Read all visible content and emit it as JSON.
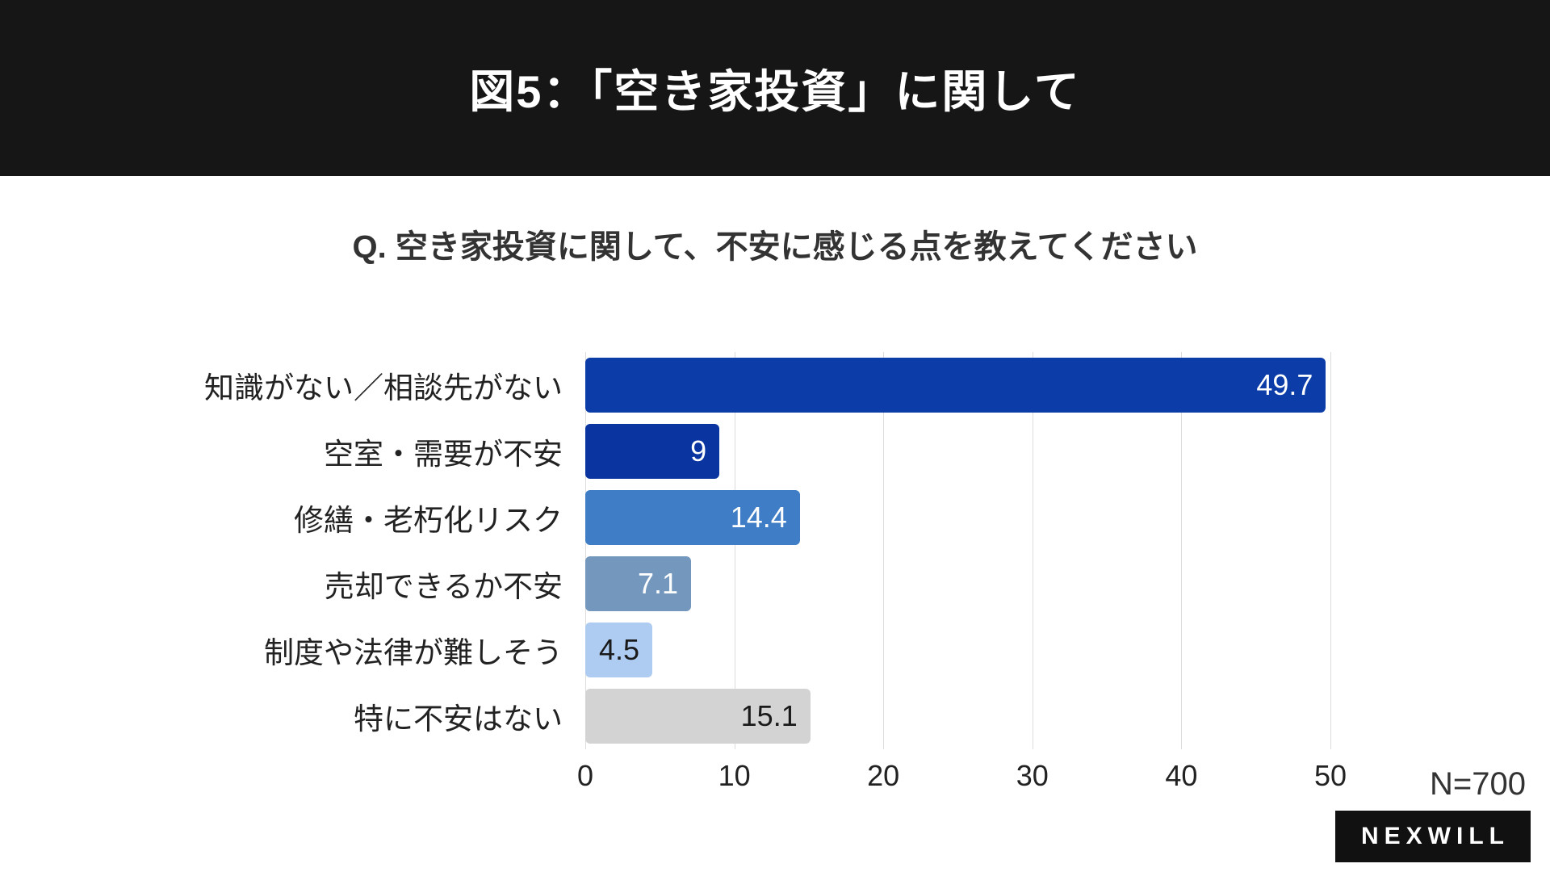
{
  "header": {
    "title": "図5：「空き家投資」に関して",
    "bg_color": "#161616"
  },
  "question": "Q. 空き家投資に関して、不安に感じる点を教えてください",
  "chart_data": {
    "type": "bar",
    "orientation": "horizontal",
    "categories": [
      "知識がない／相談先がない",
      "空室・需要が不安",
      "修繕・老朽化リスク",
      "売却できるか不安",
      "制度や法律が難しそう",
      "特に不安はない"
    ],
    "values": [
      49.7,
      9,
      14.4,
      7.1,
      4.5,
      15.1
    ],
    "value_labels": [
      "49.7",
      "9",
      "14.4",
      "7.1",
      "4.5",
      "15.1"
    ],
    "bar_colors": [
      "#0b3ca8",
      "#0a35a0",
      "#3f7ec6",
      "#7497be",
      "#aecbf2",
      "#d3d3d3"
    ],
    "value_label_colors": [
      "#ffffff",
      "#ffffff",
      "#ffffff",
      "#ffffff",
      "#1a1a1a",
      "#1a1a1a"
    ],
    "x_ticks": [
      0,
      10,
      20,
      30,
      40,
      50
    ],
    "xlim": [
      0,
      50
    ],
    "grid": true,
    "grid_color": "#dcdcdc",
    "title": "",
    "xlabel": "",
    "ylabel": ""
  },
  "footer": {
    "sample_size": "N=700",
    "brand": "NEXWILL"
  }
}
